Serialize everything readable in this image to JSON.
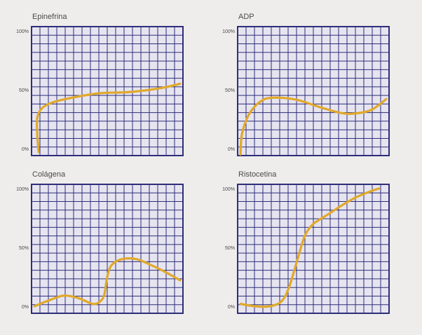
{
  "colors": {
    "grid": "#2e2e7a",
    "plot_bg": "#e6e4ef",
    "curve": "#e1a92a",
    "text": "#4a4a4a"
  },
  "chart_data": [
    {
      "type": "line",
      "title": "Epinefrina",
      "ylim": [
        0,
        100
      ],
      "yticks": [
        "0%",
        "50%",
        "100%"
      ],
      "grid": true,
      "series": [
        {
          "x": [
            0.03,
            0.02,
            0.02,
            0.05,
            0.12,
            0.25,
            0.45,
            0.65,
            0.85,
            1.0
          ],
          "y": [
            -3,
            12,
            26,
            34,
            39,
            43,
            47,
            48,
            51,
            55
          ]
        }
      ]
    },
    {
      "type": "line",
      "title": "ADP",
      "ylim": [
        0,
        100
      ],
      "yticks": [
        "0%",
        "50%",
        "100%"
      ],
      "grid": true,
      "series": [
        {
          "x": [
            0.0,
            0.01,
            0.05,
            0.1,
            0.15,
            0.2,
            0.3,
            0.4,
            0.55,
            0.7,
            0.8,
            0.9,
            1.0
          ],
          "y": [
            -5,
            12,
            27,
            36,
            41,
            43,
            43,
            41,
            35,
            30,
            30,
            33,
            42
          ]
        }
      ]
    },
    {
      "type": "line",
      "title": "Colágena",
      "ylim": [
        0,
        100
      ],
      "yticks": [
        "0%",
        "50%",
        "100%"
      ],
      "grid": true,
      "series": [
        {
          "x": [
            0.0,
            0.1,
            0.2,
            0.3,
            0.4,
            0.45,
            0.48,
            0.5,
            0.53,
            0.6,
            0.7,
            0.8,
            0.9,
            1.0
          ],
          "y": [
            0,
            5,
            9,
            7,
            2,
            4,
            10,
            25,
            35,
            40,
            40,
            35,
            29,
            22
          ]
        }
      ]
    },
    {
      "type": "line",
      "title": "Ristocetina",
      "ylim": [
        0,
        100
      ],
      "yticks": [
        "0%",
        "50%",
        "100%"
      ],
      "grid": true,
      "series": [
        {
          "x": [
            0.0,
            0.1,
            0.2,
            0.28,
            0.33,
            0.38,
            0.42,
            0.45,
            0.5,
            0.6,
            0.7,
            0.8,
            0.9,
            0.95
          ],
          "y": [
            2,
            0,
            0,
            4,
            15,
            35,
            52,
            62,
            70,
            78,
            86,
            93,
            98,
            100
          ]
        }
      ]
    }
  ]
}
